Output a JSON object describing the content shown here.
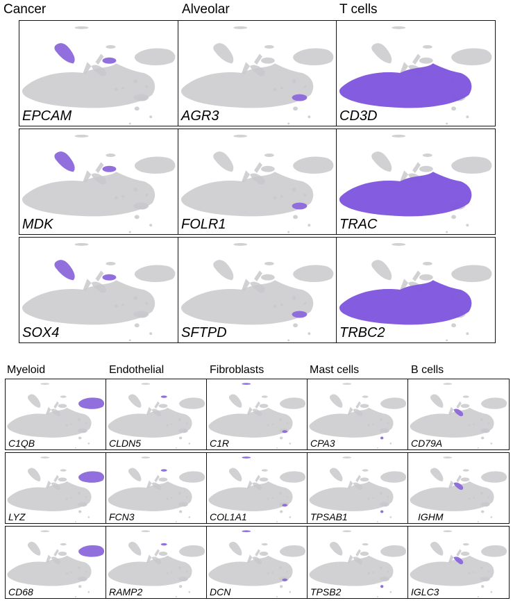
{
  "colors": {
    "background_cells": "#c9c9cd",
    "expression": "#7b4fe0",
    "frame": "#111111"
  },
  "top_section": {
    "groups": [
      {
        "title": "Cancer",
        "genes": [
          "EPCAM",
          "MDK",
          "SOX4"
        ],
        "highlight": "cancer"
      },
      {
        "title": "Alveolar",
        "genes": [
          "AGR3",
          "FOLR1",
          "SFTPD"
        ],
        "highlight": "alveolar"
      },
      {
        "title": "T cells",
        "genes": [
          "CD3D",
          "TRAC",
          "TRBC2"
        ],
        "highlight": "tcell"
      }
    ]
  },
  "bottom_section": {
    "groups": [
      {
        "title": "Myeloid",
        "genes": [
          "C1QB",
          "LYZ",
          "CD68"
        ],
        "highlight": "myeloid"
      },
      {
        "title": "Endothelial",
        "genes": [
          "CLDN5",
          "FCN3",
          "RAMP2"
        ],
        "highlight": "endothelial"
      },
      {
        "title": "Fibroblasts",
        "genes": [
          "C1R",
          "COL1A1",
          "DCN"
        ],
        "highlight": "fibroblast"
      },
      {
        "title": "Mast cells",
        "genes": [
          "CPA3",
          "TPSAB1",
          "TPSB2"
        ],
        "highlight": "mast"
      },
      {
        "title": "B cells",
        "genes": [
          "CD79A",
          "IGHM",
          "IGLC3"
        ],
        "highlight": "bcell"
      }
    ]
  }
}
